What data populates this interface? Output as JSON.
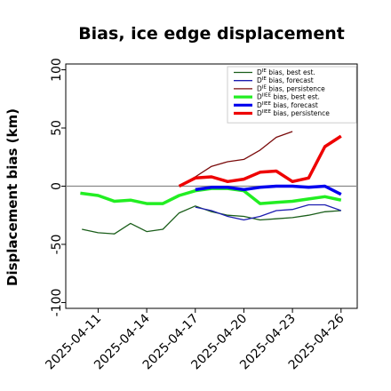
{
  "chart_data": {
    "type": "line",
    "title": "Bias, ice edge displacement",
    "ylabel": "Displacement bias (km)",
    "xlabel": "",
    "ylim": [
      -105,
      105
    ],
    "yticks": [
      -100,
      -50,
      0,
      50,
      100
    ],
    "xlim": [
      "2025-04-09",
      "2025-04-27"
    ],
    "xtick_dates": [
      "2025-04-11",
      "2025-04-14",
      "2025-04-17",
      "2025-04-20",
      "2025-04-23",
      "2025-04-26"
    ],
    "xtick_labels": [
      "2025-04-11",
      "2025-04-14",
      "2025-04-17",
      "2025-04-20",
      "2025-04-23",
      "2025-04-26"
    ],
    "xtick_colors": [
      "#000000",
      "#000000",
      "#2e8b22",
      "#000000",
      "#000000",
      "#000000"
    ],
    "zero_line": 0,
    "grid": false,
    "legend_position": "top-right",
    "series": [
      {
        "name": "D^IE bias, best est.",
        "color": "#1a5e1a",
        "width": 1.3,
        "x": [
          "2025-04-10",
          "2025-04-11",
          "2025-04-12",
          "2025-04-13",
          "2025-04-14",
          "2025-04-15",
          "2025-04-16",
          "2025-04-17",
          "2025-04-18",
          "2025-04-19",
          "2025-04-20",
          "2025-04-21",
          "2025-04-22",
          "2025-04-23",
          "2025-04-24",
          "2025-04-25",
          "2025-04-26"
        ],
        "y": [
          -37,
          -40,
          -41,
          -32,
          -39,
          -37,
          -23,
          -17,
          -22,
          -25,
          -26,
          -29,
          -28,
          -27,
          -25,
          -22,
          -21
        ]
      },
      {
        "name": "D^IE bias, forecast",
        "color": "#1d1db0",
        "width": 1.3,
        "x": [
          "2025-04-17",
          "2025-04-18",
          "2025-04-19",
          "2025-04-20",
          "2025-04-21",
          "2025-04-22",
          "2025-04-23",
          "2025-04-24",
          "2025-04-25",
          "2025-04-26"
        ],
        "y": [
          -18,
          -21,
          -26,
          -29,
          -26,
          -21,
          -20,
          -16,
          -16,
          -21
        ]
      },
      {
        "name": "D^IE bias, persistence",
        "color": "#7a0a0a",
        "width": 1.3,
        "x": [
          "2025-04-16",
          "2025-04-17",
          "2025-04-18",
          "2025-04-19",
          "2025-04-20",
          "2025-04-21",
          "2025-04-22",
          "2025-04-23"
        ],
        "y": [
          0,
          8,
          17,
          21,
          23,
          31,
          42,
          47
        ]
      },
      {
        "name": "D^IIEE bias, best est.",
        "color": "#22ee22",
        "width": 3.5,
        "x": [
          "2025-04-09.9",
          "2025-04-11",
          "2025-04-12",
          "2025-04-13",
          "2025-04-14",
          "2025-04-15",
          "2025-04-16",
          "2025-04-17",
          "2025-04-18",
          "2025-04-19",
          "2025-04-20",
          "2025-04-21",
          "2025-04-22",
          "2025-04-23",
          "2025-04-24",
          "2025-04-25",
          "2025-04-26"
        ],
        "y": [
          -6,
          -8,
          -13,
          -12,
          -15,
          -15,
          -8,
          -4,
          -2,
          -2,
          -4,
          -15,
          -14,
          -13,
          -11,
          -9,
          -12
        ]
      },
      {
        "name": "D^IIEE bias, forecast",
        "color": "#0000ee",
        "width": 3.5,
        "x": [
          "2025-04-17",
          "2025-04-18",
          "2025-04-19",
          "2025-04-20",
          "2025-04-21",
          "2025-04-22",
          "2025-04-23",
          "2025-04-24",
          "2025-04-25",
          "2025-04-26"
        ],
        "y": [
          -3,
          -1,
          -1,
          -3,
          -1,
          0,
          0,
          -1,
          0,
          -7
        ]
      },
      {
        "name": "D^IIEE bias, persistence",
        "color": "#ee0000",
        "width": 3.5,
        "x": [
          "2025-04-16",
          "2025-04-17",
          "2025-04-18",
          "2025-04-19",
          "2025-04-20",
          "2025-04-21",
          "2025-04-22",
          "2025-04-23",
          "2025-04-24",
          "2025-04-25",
          "2025-04-26"
        ],
        "y": [
          0,
          7,
          8,
          4,
          6,
          12,
          13,
          4,
          7,
          34,
          43
        ]
      }
    ]
  }
}
